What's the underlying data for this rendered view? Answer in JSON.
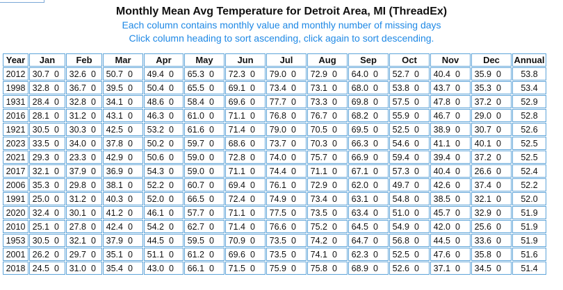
{
  "page": {
    "title": "Monthly Mean Avg Temperature for Detroit Area, MI (ThreadEx)",
    "subtitle1": "Each column contains monthly value and monthly number of missing days",
    "subtitle2": "Click column heading to sort ascending, click again to sort descending."
  },
  "table": {
    "headers": [
      "Year",
      "Jan",
      "Feb",
      "Mar",
      "Apr",
      "May",
      "Jun",
      "Jul",
      "Aug",
      "Sep",
      "Oct",
      "Nov",
      "Dec",
      "Annual"
    ],
    "rows": [
      {
        "year": "2012",
        "months": [
          [
            "30.7",
            "0"
          ],
          [
            "32.6",
            "0"
          ],
          [
            "50.7",
            "0"
          ],
          [
            "49.4",
            "0"
          ],
          [
            "65.3",
            "0"
          ],
          [
            "72.3",
            "0"
          ],
          [
            "79.0",
            "0"
          ],
          [
            "72.9",
            "0"
          ],
          [
            "64.0",
            "0"
          ],
          [
            "52.7",
            "0"
          ],
          [
            "40.4",
            "0"
          ],
          [
            "35.9",
            "0"
          ]
        ],
        "annual": "53.8"
      },
      {
        "year": "1998",
        "months": [
          [
            "32.8",
            "0"
          ],
          [
            "36.7",
            "0"
          ],
          [
            "39.5",
            "0"
          ],
          [
            "50.4",
            "0"
          ],
          [
            "65.5",
            "0"
          ],
          [
            "69.1",
            "0"
          ],
          [
            "73.4",
            "0"
          ],
          [
            "73.1",
            "0"
          ],
          [
            "68.0",
            "0"
          ],
          [
            "53.8",
            "0"
          ],
          [
            "43.7",
            "0"
          ],
          [
            "35.3",
            "0"
          ]
        ],
        "annual": "53.4"
      },
      {
        "year": "1931",
        "months": [
          [
            "28.4",
            "0"
          ],
          [
            "32.8",
            "0"
          ],
          [
            "34.1",
            "0"
          ],
          [
            "48.6",
            "0"
          ],
          [
            "58.4",
            "0"
          ],
          [
            "69.6",
            "0"
          ],
          [
            "77.7",
            "0"
          ],
          [
            "73.3",
            "0"
          ],
          [
            "69.8",
            "0"
          ],
          [
            "57.5",
            "0"
          ],
          [
            "47.8",
            "0"
          ],
          [
            "37.2",
            "0"
          ]
        ],
        "annual": "52.9"
      },
      {
        "year": "2016",
        "months": [
          [
            "28.1",
            "0"
          ],
          [
            "31.2",
            "0"
          ],
          [
            "43.1",
            "0"
          ],
          [
            "46.3",
            "0"
          ],
          [
            "61.0",
            "0"
          ],
          [
            "71.1",
            "0"
          ],
          [
            "76.8",
            "0"
          ],
          [
            "76.7",
            "0"
          ],
          [
            "68.2",
            "0"
          ],
          [
            "55.9",
            "0"
          ],
          [
            "46.7",
            "0"
          ],
          [
            "29.0",
            "0"
          ]
        ],
        "annual": "52.8"
      },
      {
        "year": "1921",
        "months": [
          [
            "30.5",
            "0"
          ],
          [
            "30.3",
            "0"
          ],
          [
            "42.5",
            "0"
          ],
          [
            "53.2",
            "0"
          ],
          [
            "61.6",
            "0"
          ],
          [
            "71.4",
            "0"
          ],
          [
            "79.0",
            "0"
          ],
          [
            "70.5",
            "0"
          ],
          [
            "69.5",
            "0"
          ],
          [
            "52.5",
            "0"
          ],
          [
            "38.9",
            "0"
          ],
          [
            "30.7",
            "0"
          ]
        ],
        "annual": "52.6"
      },
      {
        "year": "2023",
        "months": [
          [
            "33.5",
            "0"
          ],
          [
            "34.0",
            "0"
          ],
          [
            "37.8",
            "0"
          ],
          [
            "50.2",
            "0"
          ],
          [
            "59.7",
            "0"
          ],
          [
            "68.6",
            "0"
          ],
          [
            "73.7",
            "0"
          ],
          [
            "70.3",
            "0"
          ],
          [
            "66.3",
            "0"
          ],
          [
            "54.6",
            "0"
          ],
          [
            "41.1",
            "0"
          ],
          [
            "40.1",
            "0"
          ]
        ],
        "annual": "52.5"
      },
      {
        "year": "2021",
        "months": [
          [
            "29.3",
            "0"
          ],
          [
            "23.3",
            "0"
          ],
          [
            "42.9",
            "0"
          ],
          [
            "50.6",
            "0"
          ],
          [
            "59.0",
            "0"
          ],
          [
            "72.8",
            "0"
          ],
          [
            "74.0",
            "0"
          ],
          [
            "75.7",
            "0"
          ],
          [
            "66.9",
            "0"
          ],
          [
            "59.4",
            "0"
          ],
          [
            "39.4",
            "0"
          ],
          [
            "37.2",
            "0"
          ]
        ],
        "annual": "52.5"
      },
      {
        "year": "2017",
        "months": [
          [
            "32.1",
            "0"
          ],
          [
            "37.9",
            "0"
          ],
          [
            "36.9",
            "0"
          ],
          [
            "54.3",
            "0"
          ],
          [
            "59.0",
            "0"
          ],
          [
            "71.1",
            "0"
          ],
          [
            "74.4",
            "0"
          ],
          [
            "71.1",
            "0"
          ],
          [
            "67.1",
            "0"
          ],
          [
            "57.3",
            "0"
          ],
          [
            "40.4",
            "0"
          ],
          [
            "26.6",
            "0"
          ]
        ],
        "annual": "52.4"
      },
      {
        "year": "2006",
        "months": [
          [
            "35.3",
            "0"
          ],
          [
            "29.8",
            "0"
          ],
          [
            "38.1",
            "0"
          ],
          [
            "52.2",
            "0"
          ],
          [
            "60.7",
            "0"
          ],
          [
            "69.4",
            "0"
          ],
          [
            "76.1",
            "0"
          ],
          [
            "72.9",
            "0"
          ],
          [
            "62.0",
            "0"
          ],
          [
            "49.7",
            "0"
          ],
          [
            "42.6",
            "0"
          ],
          [
            "37.4",
            "0"
          ]
        ],
        "annual": "52.2"
      },
      {
        "year": "1991",
        "months": [
          [
            "25.0",
            "0"
          ],
          [
            "31.2",
            "0"
          ],
          [
            "40.3",
            "0"
          ],
          [
            "52.0",
            "0"
          ],
          [
            "66.5",
            "0"
          ],
          [
            "72.4",
            "0"
          ],
          [
            "74.9",
            "0"
          ],
          [
            "73.4",
            "0"
          ],
          [
            "63.1",
            "0"
          ],
          [
            "54.8",
            "0"
          ],
          [
            "38.5",
            "0"
          ],
          [
            "32.1",
            "0"
          ]
        ],
        "annual": "52.0"
      },
      {
        "year": "2020",
        "months": [
          [
            "32.4",
            "0"
          ],
          [
            "30.1",
            "0"
          ],
          [
            "41.2",
            "0"
          ],
          [
            "46.1",
            "0"
          ],
          [
            "57.7",
            "0"
          ],
          [
            "71.1",
            "0"
          ],
          [
            "77.5",
            "0"
          ],
          [
            "73.5",
            "0"
          ],
          [
            "63.4",
            "0"
          ],
          [
            "51.0",
            "0"
          ],
          [
            "45.7",
            "0"
          ],
          [
            "32.9",
            "0"
          ]
        ],
        "annual": "51.9"
      },
      {
        "year": "2010",
        "months": [
          [
            "25.1",
            "0"
          ],
          [
            "27.8",
            "0"
          ],
          [
            "42.4",
            "0"
          ],
          [
            "54.2",
            "0"
          ],
          [
            "62.7",
            "0"
          ],
          [
            "71.4",
            "0"
          ],
          [
            "76.6",
            "0"
          ],
          [
            "75.2",
            "0"
          ],
          [
            "64.5",
            "0"
          ],
          [
            "54.9",
            "0"
          ],
          [
            "42.0",
            "0"
          ],
          [
            "25.6",
            "0"
          ]
        ],
        "annual": "51.9"
      },
      {
        "year": "1953",
        "months": [
          [
            "30.5",
            "0"
          ],
          [
            "32.1",
            "0"
          ],
          [
            "37.9",
            "0"
          ],
          [
            "44.5",
            "0"
          ],
          [
            "59.5",
            "0"
          ],
          [
            "70.9",
            "0"
          ],
          [
            "73.5",
            "0"
          ],
          [
            "74.2",
            "0"
          ],
          [
            "64.7",
            "0"
          ],
          [
            "56.8",
            "0"
          ],
          [
            "44.5",
            "0"
          ],
          [
            "33.6",
            "0"
          ]
        ],
        "annual": "51.9"
      },
      {
        "year": "2001",
        "months": [
          [
            "26.2",
            "0"
          ],
          [
            "29.7",
            "0"
          ],
          [
            "35.1",
            "0"
          ],
          [
            "51.1",
            "0"
          ],
          [
            "61.2",
            "0"
          ],
          [
            "69.6",
            "0"
          ],
          [
            "73.5",
            "0"
          ],
          [
            "74.1",
            "0"
          ],
          [
            "62.3",
            "0"
          ],
          [
            "52.5",
            "0"
          ],
          [
            "47.6",
            "0"
          ],
          [
            "35.8",
            "0"
          ]
        ],
        "annual": "51.6"
      },
      {
        "year": "2018",
        "months": [
          [
            "24.5",
            "0"
          ],
          [
            "31.0",
            "0"
          ],
          [
            "35.4",
            "0"
          ],
          [
            "43.0",
            "0"
          ],
          [
            "66.1",
            "0"
          ],
          [
            "71.5",
            "0"
          ],
          [
            "75.9",
            "0"
          ],
          [
            "75.8",
            "0"
          ],
          [
            "68.9",
            "0"
          ],
          [
            "52.6",
            "0"
          ],
          [
            "37.1",
            "0"
          ],
          [
            "34.5",
            "0"
          ]
        ],
        "annual": "51.4"
      }
    ]
  }
}
